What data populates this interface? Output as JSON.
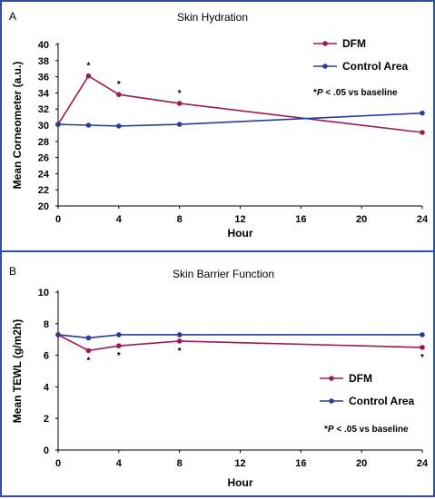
{
  "chart_data": [
    {
      "panel": "A",
      "type": "line",
      "title": "Skin Hydration",
      "xlabel": "Hour",
      "ylabel": "Mean Corneometer (a.u.)",
      "xlim": [
        0,
        24
      ],
      "ylim": [
        20,
        40
      ],
      "xticks": [
        0,
        4,
        8,
        12,
        16,
        20,
        24
      ],
      "yticks": [
        20,
        22,
        24,
        26,
        28,
        30,
        32,
        34,
        36,
        38,
        40
      ],
      "grid": false,
      "legend_position": "top-right",
      "series": [
        {
          "name": "DFM",
          "color": "#9b1b52",
          "x": [
            0,
            2,
            4,
            8,
            24
          ],
          "y": [
            30.1,
            36.1,
            33.8,
            32.7,
            29.1
          ],
          "significant": [
            false,
            true,
            true,
            true,
            false
          ]
        },
        {
          "name": "Control Area",
          "color": "#2a3d99",
          "x": [
            0,
            2,
            4,
            8,
            24
          ],
          "y": [
            30.1,
            30.0,
            29.9,
            30.1,
            31.5
          ],
          "significant": [
            false,
            false,
            false,
            false,
            false
          ]
        }
      ],
      "annotation": {
        "prefix": "*",
        "italic": "P",
        "suffix": " < .05 vs baseline"
      }
    },
    {
      "panel": "B",
      "type": "line",
      "title": "Skin Barrier Function",
      "xlabel": "Hour",
      "ylabel": "Mean TEWL (g/m2h)",
      "xlim": [
        0,
        24
      ],
      "ylim": [
        0,
        10
      ],
      "xticks": [
        0,
        4,
        8,
        12,
        16,
        20,
        24
      ],
      "yticks": [
        0,
        2,
        4,
        6,
        8,
        10
      ],
      "grid": false,
      "legend_position": "right",
      "series": [
        {
          "name": "DFM",
          "color": "#9b1b52",
          "x": [
            0,
            2,
            4,
            8,
            24
          ],
          "y": [
            7.3,
            6.3,
            6.6,
            6.9,
            6.5
          ],
          "significant": [
            false,
            true,
            true,
            true,
            true
          ]
        },
        {
          "name": "Control Area",
          "color": "#2a3d99",
          "x": [
            0,
            2,
            4,
            8,
            24
          ],
          "y": [
            7.3,
            7.1,
            7.3,
            7.3,
            7.3
          ],
          "significant": [
            false,
            false,
            false,
            false,
            false
          ]
        }
      ],
      "annotation": {
        "prefix": "*",
        "italic": "P",
        "suffix": " < .05 vs baseline"
      }
    }
  ]
}
